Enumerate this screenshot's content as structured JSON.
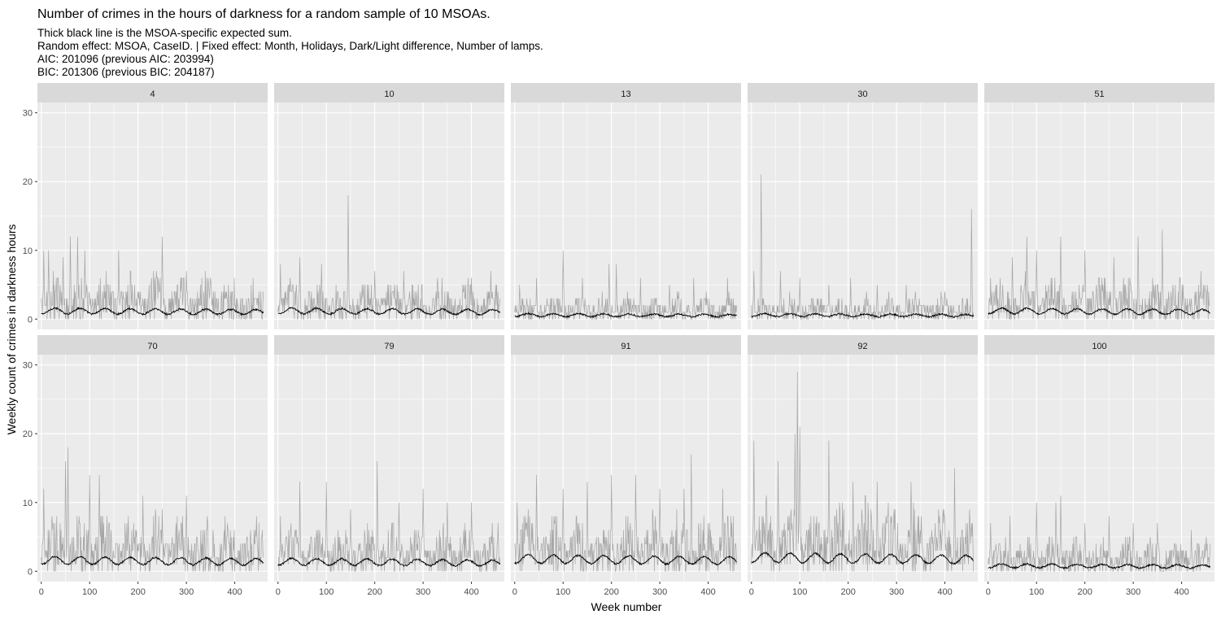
{
  "chart_data": {
    "type": "line",
    "title": "Number of crimes in the hours of darkness for a random sample of 10 MSOAs.",
    "subtitle": [
      "Thick black line is the MSOA-specific expected sum.",
      "Random effect: MSOA, CaseID. | Fixed effect: Month, Holidays, Dark/Light difference, Number of lamps.",
      "AIC: 201096 (previous AIC: 203994)",
      "BIC: 201306 (previous BIC: 204187)"
    ],
    "xlabel": "Week number",
    "ylabel": "Weekly count of crimes in darkness hours",
    "xlim": [
      -8,
      468
    ],
    "ylim": [
      -1.5,
      31.5
    ],
    "x_ticks": [
      0,
      100,
      200,
      300,
      400
    ],
    "y_ticks": [
      0,
      10,
      20,
      30
    ],
    "n_weeks": 460,
    "grid": true,
    "series_legend": [
      "observed weekly count (grey)",
      "MSOA-specific expected sum (black)"
    ],
    "colors": {
      "panel_bg": "#ebebeb",
      "strip_bg": "#d9d9d9",
      "grid": "#ffffff",
      "observed": "#a6a6a6",
      "expected": "#000000"
    },
    "panels": [
      {
        "label": "4",
        "base": 4.0,
        "expected": 1.2,
        "peaks": [
          [
            5,
            10
          ],
          [
            15,
            10
          ],
          [
            45,
            9
          ],
          [
            60,
            12
          ],
          [
            75,
            12
          ],
          [
            90,
            10
          ],
          [
            160,
            10
          ],
          [
            250,
            12
          ],
          [
            300,
            7
          ],
          [
            350,
            6
          ]
        ]
      },
      {
        "label": "10",
        "base": 3.2,
        "expected": 1.2,
        "peaks": [
          [
            5,
            8
          ],
          [
            45,
            9
          ],
          [
            90,
            8
          ],
          [
            145,
            18
          ],
          [
            200,
            7
          ],
          [
            260,
            7
          ],
          [
            330,
            6
          ],
          [
            400,
            6
          ],
          [
            440,
            7
          ]
        ]
      },
      {
        "label": "13",
        "base": 2.2,
        "expected": 0.6,
        "peaks": [
          [
            10,
            5
          ],
          [
            45,
            6
          ],
          [
            100,
            10
          ],
          [
            140,
            6
          ],
          [
            195,
            8
          ],
          [
            210,
            8
          ],
          [
            260,
            6
          ],
          [
            320,
            5
          ],
          [
            370,
            6
          ],
          [
            440,
            6
          ]
        ]
      },
      {
        "label": "30",
        "base": 2.2,
        "expected": 0.6,
        "peaks": [
          [
            5,
            7
          ],
          [
            20,
            21
          ],
          [
            60,
            7
          ],
          [
            100,
            6
          ],
          [
            160,
            5
          ],
          [
            205,
            6
          ],
          [
            260,
            5
          ],
          [
            320,
            5
          ],
          [
            400,
            4
          ],
          [
            455,
            16
          ]
        ]
      },
      {
        "label": "51",
        "base": 3.8,
        "expected": 1.2,
        "peaks": [
          [
            5,
            6
          ],
          [
            50,
            9
          ],
          [
            80,
            12
          ],
          [
            100,
            10
          ],
          [
            150,
            12
          ],
          [
            200,
            10
          ],
          [
            260,
            9
          ],
          [
            310,
            12
          ],
          [
            360,
            13
          ],
          [
            440,
            7
          ]
        ]
      },
      {
        "label": "70",
        "base": 5.0,
        "expected": 1.6,
        "peaks": [
          [
            5,
            12
          ],
          [
            50,
            16
          ],
          [
            55,
            18
          ],
          [
            100,
            14
          ],
          [
            120,
            14
          ],
          [
            210,
            11
          ],
          [
            250,
            9
          ],
          [
            300,
            11
          ],
          [
            380,
            8
          ],
          [
            440,
            6
          ]
        ]
      },
      {
        "label": "79",
        "base": 4.0,
        "expected": 1.4,
        "peaks": [
          [
            5,
            8
          ],
          [
            45,
            13
          ],
          [
            100,
            13
          ],
          [
            150,
            9
          ],
          [
            205,
            16
          ],
          [
            250,
            10
          ],
          [
            300,
            12
          ],
          [
            350,
            10
          ],
          [
            400,
            10
          ],
          [
            455,
            7
          ]
        ]
      },
      {
        "label": "91",
        "base": 5.0,
        "expected": 1.8,
        "peaks": [
          [
            5,
            10
          ],
          [
            45,
            14
          ],
          [
            100,
            12
          ],
          [
            150,
            13
          ],
          [
            200,
            14
          ],
          [
            250,
            14
          ],
          [
            300,
            12
          ],
          [
            350,
            12
          ],
          [
            365,
            17
          ],
          [
            430,
            12
          ]
        ]
      },
      {
        "label": "92",
        "base": 6.0,
        "expected": 2.0,
        "peaks": [
          [
            5,
            19
          ],
          [
            55,
            16
          ],
          [
            90,
            20
          ],
          [
            95,
            29
          ],
          [
            100,
            21
          ],
          [
            160,
            19
          ],
          [
            210,
            13
          ],
          [
            260,
            13
          ],
          [
            330,
            13
          ],
          [
            420,
            15
          ]
        ]
      },
      {
        "label": "100",
        "base": 3.2,
        "expected": 0.8,
        "peaks": [
          [
            5,
            7
          ],
          [
            45,
            8
          ],
          [
            100,
            10
          ],
          [
            140,
            10
          ],
          [
            150,
            11
          ],
          [
            200,
            7
          ],
          [
            250,
            8
          ],
          [
            300,
            7
          ],
          [
            350,
            7
          ],
          [
            420,
            6
          ]
        ]
      }
    ]
  }
}
